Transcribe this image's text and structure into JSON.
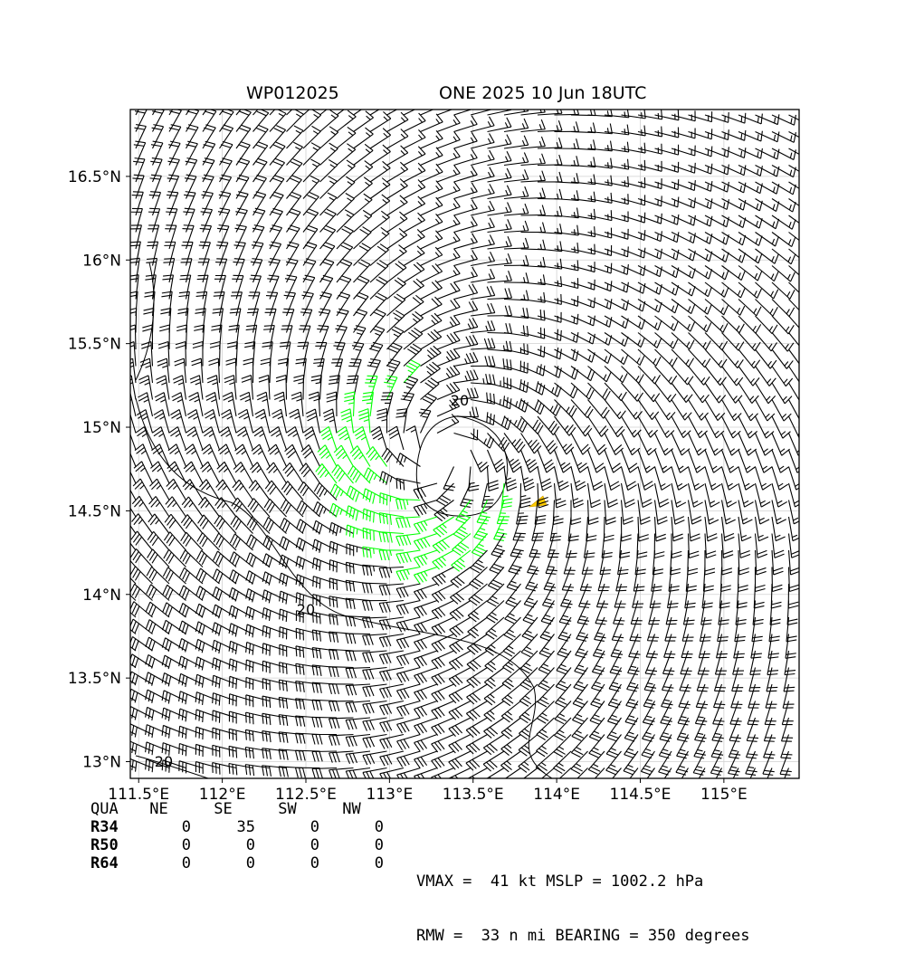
{
  "title": {
    "storm_id": "WP012025",
    "storm_time": "ONE 2025 10 Jun 18UTC"
  },
  "axes": {
    "lon_range": [
      111.45,
      115.45
    ],
    "lat_range": [
      12.9,
      16.9
    ],
    "x_ticks": [
      {
        "value": 111.5,
        "label": "111.5°E"
      },
      {
        "value": 112.0,
        "label": "112°E"
      },
      {
        "value": 112.5,
        "label": "112.5°E"
      },
      {
        "value": 113.0,
        "label": "113°E"
      },
      {
        "value": 113.5,
        "label": "113.5°E"
      },
      {
        "value": 114.0,
        "label": "114°E"
      },
      {
        "value": 114.5,
        "label": "114.5°E"
      },
      {
        "value": 115.0,
        "label": "115°E"
      }
    ],
    "y_ticks": [
      {
        "value": 13.0,
        "label": "13°N"
      },
      {
        "value": 13.5,
        "label": "13.5°N"
      },
      {
        "value": 14.0,
        "label": "14°N"
      },
      {
        "value": 14.5,
        "label": "14.5°N"
      },
      {
        "value": 15.0,
        "label": "15°N"
      },
      {
        "value": 15.5,
        "label": "15.5°N"
      },
      {
        "value": 16.0,
        "label": "16°N"
      },
      {
        "value": 16.5,
        "label": "16.5°N"
      }
    ]
  },
  "storm": {
    "center_lon": 113.3,
    "center_lat": 14.85
  },
  "contour_labels": [
    {
      "text": "20",
      "lon": 113.42,
      "lat": 15.13
    },
    {
      "text": "20",
      "lon": 112.5,
      "lat": 13.88
    },
    {
      "text": "20",
      "lon": 111.65,
      "lat": 12.97
    }
  ],
  "colors": {
    "barb_strong": "#00ff00",
    "barb_weak": "#000000",
    "grid": "#d0d0d0",
    "flag": "#ffcc00"
  },
  "radii_table": {
    "header": [
      "QUA",
      "NE",
      "SE",
      "SW",
      "NW"
    ],
    "rows": [
      {
        "label": "R34",
        "values": [
          "0",
          "35",
          "0",
          "0"
        ]
      },
      {
        "label": "R50",
        "values": [
          "0",
          "0",
          "0",
          "0"
        ]
      },
      {
        "label": "R64",
        "values": [
          "0",
          "0",
          "0",
          "0"
        ]
      }
    ]
  },
  "stats": {
    "line1": "VMAX =  41 kt MSLP = 1002.2 hPa",
    "line2": "RMW =  33 n mi BEARING = 350 degrees"
  }
}
